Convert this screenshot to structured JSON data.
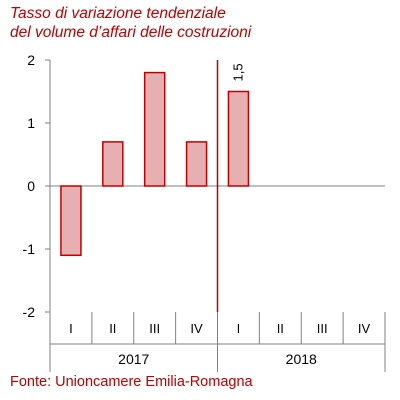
{
  "chart_data": {
    "type": "bar",
    "title": "Tasso di variazione tendenziale\ndel volume d’affari delle costruzioni",
    "source": "Fonte: Unioncamere Emilia-Romagna",
    "categories": [
      "I",
      "II",
      "III",
      "IV",
      "I",
      "II",
      "III",
      "IV"
    ],
    "groups": [
      {
        "label": "2017",
        "categories": [
          "I",
          "II",
          "III",
          "IV"
        ]
      },
      {
        "label": "2018",
        "categories": [
          "I",
          "II",
          "III",
          "IV"
        ]
      }
    ],
    "values": [
      -1.1,
      0.7,
      1.8,
      0.7,
      1.5,
      null,
      null,
      null
    ],
    "data_labels": [
      {
        "index": 4,
        "text": "1,5"
      }
    ],
    "yticks": [
      "2",
      "1",
      "0",
      "-1",
      "-2"
    ],
    "ylim": [
      -2,
      2
    ],
    "grid": false,
    "colors": {
      "bar_fill": "#e6b0b3",
      "bar_stroke": "#c00000",
      "separator": "#c00000",
      "title": "#c00000",
      "axis": "#808080"
    }
  }
}
